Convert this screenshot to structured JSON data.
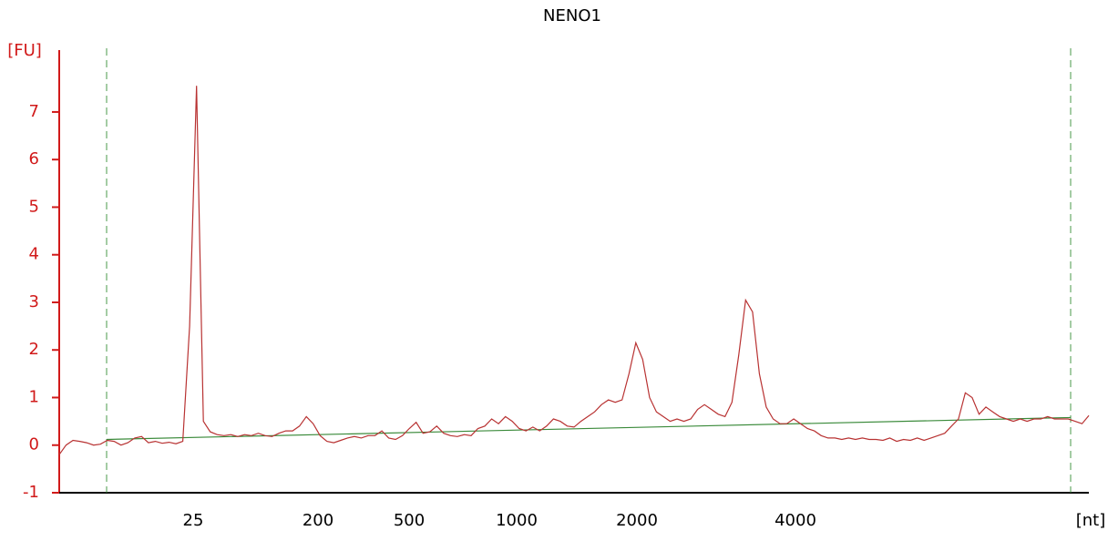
{
  "chart_data": {
    "type": "line",
    "title": "NENO1",
    "y_label": "[FU]",
    "x_label": "[nt]",
    "x_labels": [
      "25",
      "200",
      "500",
      "1000",
      "2000",
      "4000"
    ],
    "ylim": [
      -1,
      8.3
    ],
    "yticks": [
      -1,
      0,
      1,
      2,
      3,
      4,
      5,
      6,
      7
    ],
    "axis_color": "#d11a1a",
    "series": [
      {
        "color": "#b83232",
        "values": [
          -0.2,
          0.0,
          0.1,
          0.08,
          0.05,
          0.0,
          0.02,
          0.1,
          0.08,
          0.0,
          0.05,
          0.15,
          0.18,
          0.05,
          0.08,
          0.04,
          0.06,
          0.03,
          0.08,
          2.5,
          7.55,
          0.5,
          0.28,
          0.22,
          0.2,
          0.22,
          0.18,
          0.22,
          0.2,
          0.25,
          0.2,
          0.18,
          0.25,
          0.3,
          0.3,
          0.4,
          0.6,
          0.45,
          0.2,
          0.08,
          0.05,
          0.1,
          0.15,
          0.18,
          0.15,
          0.2,
          0.2,
          0.3,
          0.15,
          0.12,
          0.2,
          0.35,
          0.48,
          0.25,
          0.28,
          0.4,
          0.25,
          0.2,
          0.18,
          0.22,
          0.2,
          0.35,
          0.4,
          0.55,
          0.45,
          0.6,
          0.5,
          0.35,
          0.3,
          0.38,
          0.3,
          0.4,
          0.55,
          0.5,
          0.4,
          0.38,
          0.5,
          0.6,
          0.7,
          0.85,
          0.95,
          0.9,
          0.95,
          1.5,
          2.15,
          1.8,
          1.0,
          0.7,
          0.6,
          0.5,
          0.55,
          0.5,
          0.55,
          0.75,
          0.85,
          0.75,
          0.65,
          0.6,
          0.9,
          1.9,
          3.05,
          2.8,
          1.5,
          0.8,
          0.55,
          0.45,
          0.45,
          0.55,
          0.45,
          0.35,
          0.3,
          0.2,
          0.15,
          0.15,
          0.12,
          0.15,
          0.12,
          0.15,
          0.12,
          0.12,
          0.1,
          0.15,
          0.08,
          0.12,
          0.1,
          0.15,
          0.1,
          0.15,
          0.2,
          0.25,
          0.4,
          0.55,
          1.1,
          1.0,
          0.65,
          0.8,
          0.7,
          0.6,
          0.55,
          0.5,
          0.55,
          0.5,
          0.55,
          0.55,
          0.6,
          0.55,
          0.55,
          0.55,
          0.5,
          0.45,
          0.62
        ]
      }
    ],
    "baseline": {
      "color": "#3a8a3a",
      "values": [
        0.12,
        0.58
      ]
    },
    "marker_color": "#4a9a4a"
  }
}
